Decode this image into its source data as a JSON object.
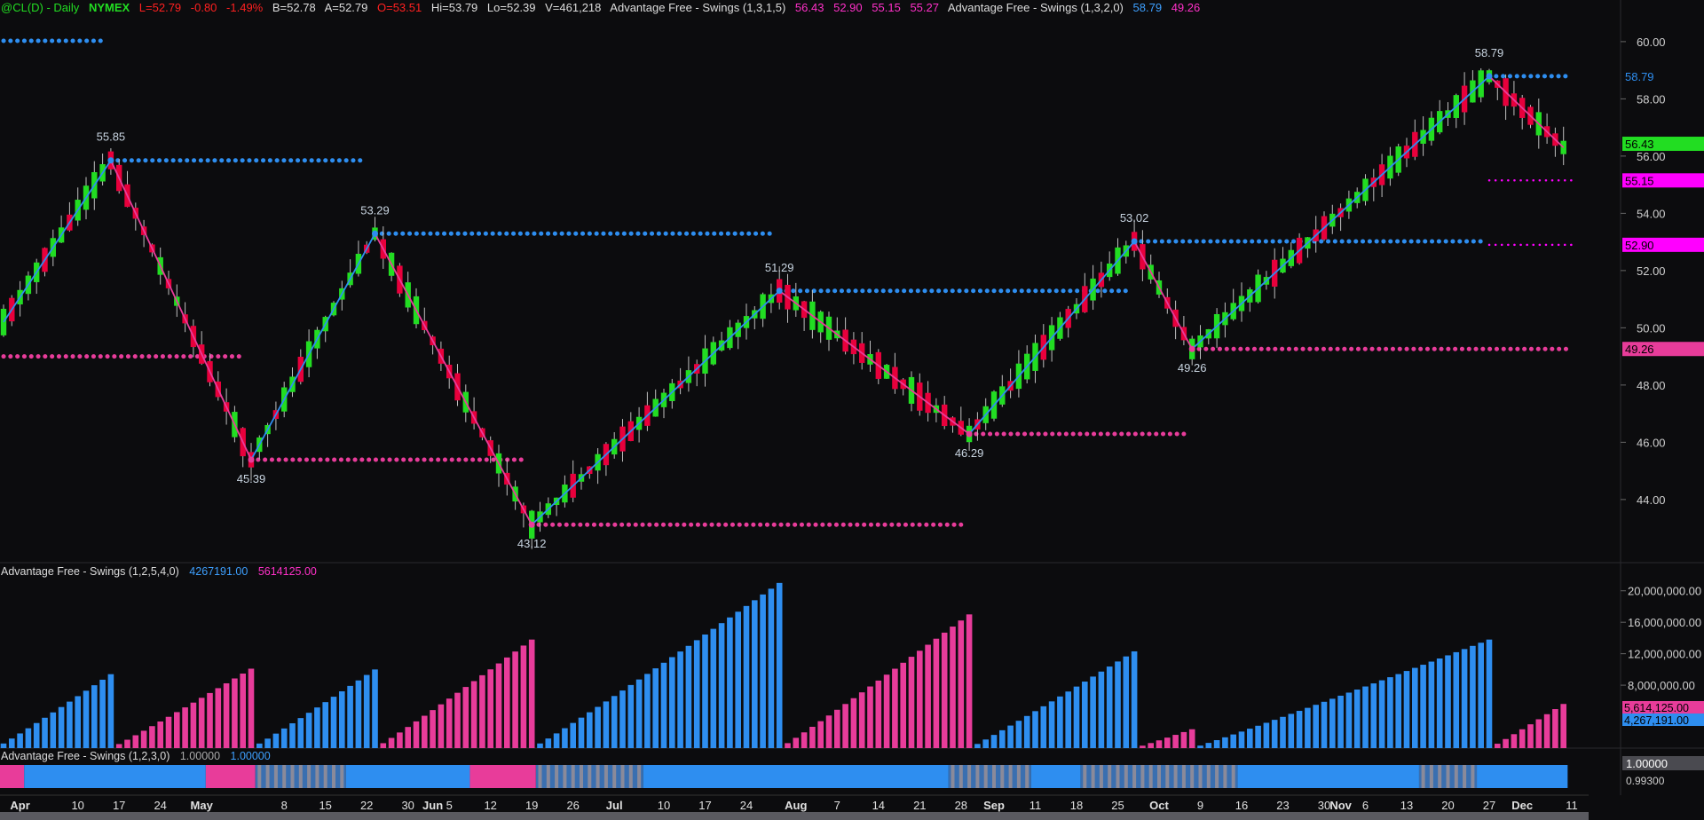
{
  "header": {
    "symbol": "@CL(D) - Daily",
    "exchange": "NYMEX",
    "last": "L=52.79",
    "change": "-0.80",
    "change_pct": "-1.49%",
    "bid": "B=52.78",
    "ask": "A=52.79",
    "open": "O=53.51",
    "high": "Hi=53.79",
    "low": "Lo=52.39",
    "volume": "V=461,218",
    "ind1_name": "Advantage Free - Swings (1,3,1,5)",
    "ind1_vals": [
      "56.43",
      "52.90",
      "55.15",
      "55.27"
    ],
    "ind2_name": "Advantage Free - Swings (1,3,2,0)",
    "ind2_vals": [
      "58.79",
      "49.26"
    ]
  },
  "panel2": {
    "name": "Advantage Free - Swings (1,2,5,4,0)",
    "v1": "4267191.00",
    "v2": "5614125.00"
  },
  "panel3": {
    "name": "Advantage Free - Swings (1,2,3,0)",
    "v1": "1.00000",
    "v2": "1.00000"
  },
  "colors": {
    "up": "#22dd22",
    "down": "#e8003c",
    "blue": "#2e8ef0",
    "pink": "#e83c9a",
    "magenta": "#ff00ff",
    "bg": "#0c0c0e"
  },
  "price_axis": {
    "ticks": [
      "60.00",
      "58.00",
      "56.00",
      "54.00",
      "52.00",
      "50.00",
      "48.00",
      "46.00",
      "44.00"
    ],
    "tags": [
      {
        "text": "58.79",
        "value": 58.79,
        "color": "#0c0c0e",
        "bg": "#0c0c0e",
        "fg": "#2e8ef0"
      },
      {
        "text": "56.43",
        "value": 56.43,
        "color": "#22dd22",
        "bg": "#22dd22",
        "fg": "#000000"
      },
      {
        "text": "55.15",
        "value": 55.15,
        "color": "#ff00ff",
        "bg": "#ff00ff",
        "fg": "#000000"
      },
      {
        "text": "52.90",
        "value": 52.9,
        "color": "#ff00ff",
        "bg": "#ff00ff",
        "fg": "#000000"
      },
      {
        "text": "49.26",
        "value": 49.26,
        "color": "#e83c9a",
        "bg": "#e83c9a",
        "fg": "#000000"
      }
    ]
  },
  "vol_axis": {
    "ticks": [
      "20,000,000.00",
      "16,000,000.00",
      "12,000,000.00",
      "8,000,000.00"
    ],
    "tags": [
      {
        "text": "5,614,125.00",
        "value": 5614125,
        "bg": "#e83c9a"
      },
      {
        "text": "4,267,191.00",
        "value": 4267191,
        "bg": "#2e8ef0"
      }
    ]
  },
  "osc_axis": {
    "ticks": [
      "1.00000",
      "0.99300"
    ]
  },
  "x_axis": {
    "labels": [
      {
        "text": "Apr",
        "bar": 2,
        "bold": true
      },
      {
        "text": "10",
        "bar": 9
      },
      {
        "text": "17",
        "bar": 14
      },
      {
        "text": "24",
        "bar": 19
      },
      {
        "text": "May",
        "bar": 24,
        "bold": true
      },
      {
        "text": "8",
        "bar": 34
      },
      {
        "text": "15",
        "bar": 39
      },
      {
        "text": "22",
        "bar": 44
      },
      {
        "text": "30",
        "bar": 49
      },
      {
        "text": "Jun",
        "bar": 52,
        "bold": true
      },
      {
        "text": "5",
        "bar": 54
      },
      {
        "text": "12",
        "bar": 59
      },
      {
        "text": "19",
        "bar": 64
      },
      {
        "text": "26",
        "bar": 69
      },
      {
        "text": "Jul",
        "bar": 74,
        "bold": true
      },
      {
        "text": "10",
        "bar": 80
      },
      {
        "text": "17",
        "bar": 85
      },
      {
        "text": "24",
        "bar": 90
      },
      {
        "text": "Aug",
        "bar": 96,
        "bold": true
      },
      {
        "text": "7",
        "bar": 101
      },
      {
        "text": "14",
        "bar": 106
      },
      {
        "text": "21",
        "bar": 111
      },
      {
        "text": "28",
        "bar": 116
      },
      {
        "text": "Sep",
        "bar": 120,
        "bold": true
      },
      {
        "text": "11",
        "bar": 125
      },
      {
        "text": "18",
        "bar": 130
      },
      {
        "text": "25",
        "bar": 135
      },
      {
        "text": "Oct",
        "bar": 140,
        "bold": true
      },
      {
        "text": "9",
        "bar": 145
      },
      {
        "text": "16",
        "bar": 150
      },
      {
        "text": "23",
        "bar": 155
      },
      {
        "text": "30",
        "bar": 160
      },
      {
        "text": "Nov",
        "bar": 162,
        "bold": true
      },
      {
        "text": "6",
        "bar": 165
      },
      {
        "text": "13",
        "bar": 170
      },
      {
        "text": "20",
        "bar": 175
      },
      {
        "text": "27",
        "bar": 180
      },
      {
        "text": "Dec",
        "bar": 184,
        "bold": true
      },
      {
        "text": "11",
        "bar": 190
      }
    ]
  },
  "chart_data": {
    "type": "candlestick",
    "title": "@CL(D) - Daily",
    "ylim": [
      42.6,
      60.4
    ],
    "bars": 190,
    "swings": [
      {
        "bar": 0,
        "value": 50.2,
        "label": ""
      },
      {
        "bar": 13,
        "value": 55.85,
        "label": "55.85"
      },
      {
        "bar": 30,
        "value": 45.39,
        "label": "45.39"
      },
      {
        "bar": 45,
        "value": 53.29,
        "label": "53.29"
      },
      {
        "bar": 64,
        "value": 43.12,
        "label": "43.12"
      },
      {
        "bar": 94,
        "value": 51.29,
        "label": "51.29"
      },
      {
        "bar": 117,
        "value": 46.29,
        "label": "46.29"
      },
      {
        "bar": 137,
        "value": 53.02,
        "label": "53.02"
      },
      {
        "bar": 144,
        "value": 49.26,
        "label": "49.26"
      },
      {
        "bar": 180,
        "value": 58.79,
        "label": "58.79"
      },
      {
        "bar": 189,
        "value": 56.3,
        "label": ""
      }
    ],
    "swing_levels": [
      {
        "value": 61.0,
        "from": 0,
        "to": 12,
        "color": "blue"
      },
      {
        "value": 55.85,
        "from": 13,
        "to": 44,
        "color": "blue"
      },
      {
        "value": 49.0,
        "from": 0,
        "to": 29,
        "color": "pink"
      },
      {
        "value": 45.39,
        "from": 30,
        "to": 63,
        "color": "pink"
      },
      {
        "value": 53.29,
        "from": 45,
        "to": 93,
        "color": "blue"
      },
      {
        "value": 43.12,
        "from": 64,
        "to": 116,
        "color": "pink"
      },
      {
        "value": 51.29,
        "from": 94,
        "to": 136,
        "color": "blue"
      },
      {
        "value": 46.29,
        "from": 117,
        "to": 143,
        "color": "pink"
      },
      {
        "value": 53.02,
        "from": 137,
        "to": 179,
        "color": "blue"
      },
      {
        "value": 49.26,
        "from": 144,
        "to": 190,
        "color": "pink"
      },
      {
        "value": 58.79,
        "from": 180,
        "to": 190,
        "color": "blue"
      }
    ],
    "magenta_levels": [
      {
        "value": 55.15,
        "from": 180,
        "to": 190
      },
      {
        "value": 52.9,
        "from": 180,
        "to": 190
      }
    ],
    "volume_ylim": [
      0,
      22000000
    ],
    "volume_peaks": [
      {
        "from": 0,
        "to": 13,
        "peak": 9400000,
        "color": "blue"
      },
      {
        "from": 14,
        "to": 30,
        "peak": 10100000,
        "color": "pink"
      },
      {
        "from": 31,
        "to": 45,
        "peak": 10000000,
        "color": "blue"
      },
      {
        "from": 46,
        "to": 64,
        "peak": 13800000,
        "color": "pink"
      },
      {
        "from": 65,
        "to": 94,
        "peak": 21000000,
        "color": "blue"
      },
      {
        "from": 95,
        "to": 117,
        "peak": 17000000,
        "color": "pink"
      },
      {
        "from": 118,
        "to": 137,
        "peak": 12300000,
        "color": "blue"
      },
      {
        "from": 138,
        "to": 144,
        "peak": 2400000,
        "color": "pink"
      },
      {
        "from": 145,
        "to": 180,
        "peak": 13800000,
        "color": "blue"
      },
      {
        "from": 181,
        "to": 189,
        "peak": 5614125,
        "color": "pink"
      }
    ],
    "osc_segments": [
      {
        "from": 0,
        "to": 2,
        "color": "pink"
      },
      {
        "from": 3,
        "to": 24,
        "color": "blue"
      },
      {
        "from": 25,
        "to": 30,
        "color": "pink"
      },
      {
        "from": 31,
        "to": 41,
        "color": "grid"
      },
      {
        "from": 42,
        "to": 56,
        "color": "blue"
      },
      {
        "from": 57,
        "to": 64,
        "color": "pink"
      },
      {
        "from": 65,
        "to": 77,
        "color": "grid"
      },
      {
        "from": 78,
        "to": 114,
        "color": "blue"
      },
      {
        "from": 115,
        "to": 124,
        "color": "grid"
      },
      {
        "from": 125,
        "to": 130,
        "color": "blue"
      },
      {
        "from": 131,
        "to": 149,
        "color": "grid"
      },
      {
        "from": 150,
        "to": 171,
        "color": "blue"
      },
      {
        "from": 172,
        "to": 178,
        "color": "grid"
      },
      {
        "from": 179,
        "to": 189,
        "color": "blue"
      }
    ]
  }
}
